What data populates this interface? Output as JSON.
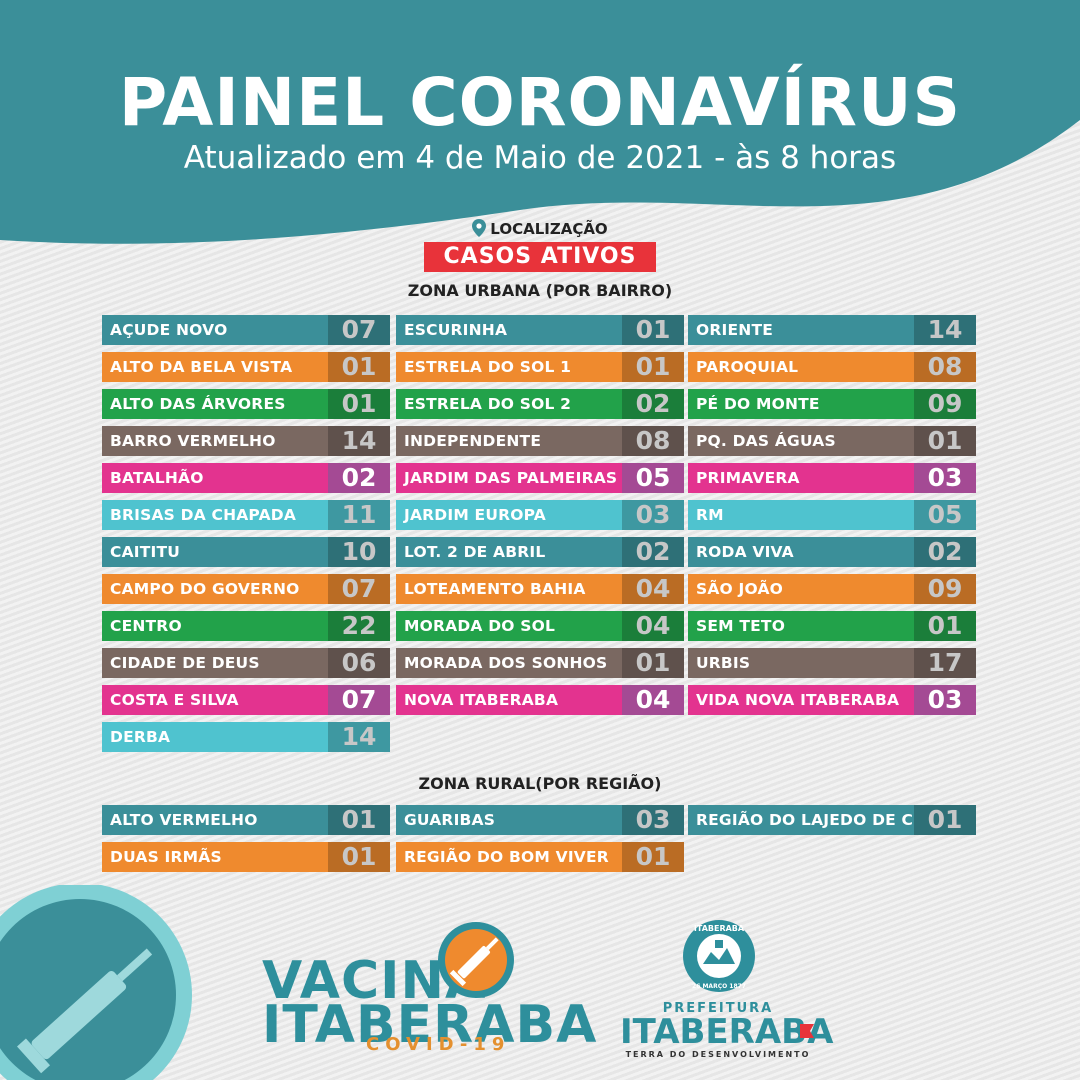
{
  "header": {
    "title": "PAINEL CORONAVÍRUS",
    "subtitle": "Atualizado em 4 de Maio de 2021 - às 8 horas"
  },
  "legend": {
    "location_label": "LOCALIZAÇÃO",
    "cases_label": "CASOS ATIVOS"
  },
  "colors": {
    "teal": "#3b8f99",
    "orange": "#ef8a2e",
    "green": "#22a24a",
    "brown": "#7a6861",
    "magenta": "#e3338f",
    "lightblue": "#4fc3cf",
    "magenta_num": "#a44a94",
    "red_badge": "#e8333a"
  },
  "urban": {
    "title": "ZONA URBANA (POR BAIRRO)",
    "col1": [
      {
        "name": "AÇUDE NOVO",
        "value": "07",
        "color": "teal"
      },
      {
        "name": "ALTO DA BELA VISTA",
        "value": "01",
        "color": "orange"
      },
      {
        "name": "ALTO DAS ÁRVORES",
        "value": "01",
        "color": "green"
      },
      {
        "name": "BARRO VERMELHO",
        "value": "14",
        "color": "brown"
      },
      {
        "name": "BATALHÃO",
        "value": "02",
        "color": "magenta"
      },
      {
        "name": "BRISAS DA CHAPADA",
        "value": "11",
        "color": "lightblue"
      },
      {
        "name": "CAITITU",
        "value": "10",
        "color": "teal"
      },
      {
        "name": "CAMPO DO GOVERNO",
        "value": "07",
        "color": "orange"
      },
      {
        "name": "CENTRO",
        "value": "22",
        "color": "green"
      },
      {
        "name": "CIDADE DE DEUS",
        "value": "06",
        "color": "brown"
      },
      {
        "name": "COSTA E SILVA",
        "value": "07",
        "color": "magenta"
      },
      {
        "name": "DERBA",
        "value": "14",
        "color": "lightblue"
      }
    ],
    "col2": [
      {
        "name": "ESCURINHA",
        "value": "01",
        "color": "teal"
      },
      {
        "name": "ESTRELA DO SOL 1",
        "value": "01",
        "color": "orange"
      },
      {
        "name": "ESTRELA DO SOL 2",
        "value": "02",
        "color": "green"
      },
      {
        "name": "INDEPENDENTE",
        "value": "08",
        "color": "brown"
      },
      {
        "name": "JARDIM DAS PALMEIRAS",
        "value": "05",
        "color": "magenta"
      },
      {
        "name": "JARDIM EUROPA",
        "value": "03",
        "color": "lightblue"
      },
      {
        "name": "LOT. 2 DE ABRIL",
        "value": "02",
        "color": "teal"
      },
      {
        "name": "LOTEAMENTO BAHIA",
        "value": "04",
        "color": "orange"
      },
      {
        "name": "MORADA DO SOL",
        "value": "04",
        "color": "green"
      },
      {
        "name": "MORADA DOS SONHOS",
        "value": "01",
        "color": "brown"
      },
      {
        "name": "NOVA ITABERABA",
        "value": "04",
        "color": "magenta"
      }
    ],
    "col3": [
      {
        "name": "ORIENTE",
        "value": "14",
        "color": "teal"
      },
      {
        "name": "PAROQUIAL",
        "value": "08",
        "color": "orange"
      },
      {
        "name": "PÉ DO MONTE",
        "value": "09",
        "color": "green"
      },
      {
        "name": "PQ. DAS ÁGUAS",
        "value": "01",
        "color": "brown"
      },
      {
        "name": "PRIMAVERA",
        "value": "03",
        "color": "magenta"
      },
      {
        "name": "RM",
        "value": "05",
        "color": "lightblue"
      },
      {
        "name": "RODA VIVA",
        "value": "02",
        "color": "teal"
      },
      {
        "name": "SÃO JOÃO",
        "value": "09",
        "color": "orange"
      },
      {
        "name": "SEM TETO",
        "value": "01",
        "color": "green"
      },
      {
        "name": "URBIS",
        "value": "17",
        "color": "brown"
      },
      {
        "name": "VIDA NOVA ITABERABA",
        "value": "03",
        "color": "magenta"
      }
    ]
  },
  "rural": {
    "title": "ZONA RURAL(POR REGIÃO)",
    "col1": [
      {
        "name": "ALTO VERMELHO",
        "value": "01",
        "color": "teal"
      },
      {
        "name": "DUAS IRMÃS",
        "value": "01",
        "color": "orange"
      }
    ],
    "col2": [
      {
        "name": "GUARIBAS",
        "value": "03",
        "color": "teal"
      },
      {
        "name": "REGIÃO DO BOM VIVER",
        "value": "01",
        "color": "orange"
      }
    ],
    "col3": [
      {
        "name": "REGIÃO DO LAJEDO DE CIMA",
        "value": "01",
        "color": "teal"
      }
    ]
  },
  "footer": {
    "vaccine_line1": "VACINA",
    "vaccine_line2": "ITABERABA",
    "vaccine_line3": "COVID-19",
    "seal_text": "ITABERABA",
    "seal_date": "26 MARÇO 1877",
    "pref_small": "PREFEITURA",
    "pref_big": "ITABERABA",
    "pref_tagline": "TERRA DO DESENVOLVIMENTO"
  }
}
